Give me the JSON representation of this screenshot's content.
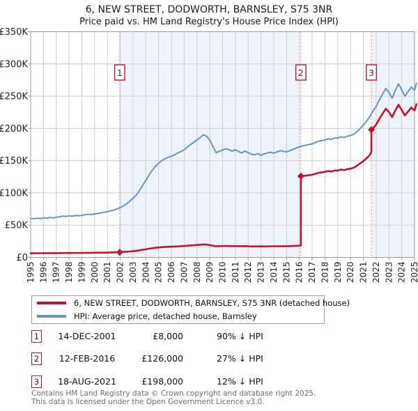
{
  "chart_data": {
    "type": "line",
    "title": "6, NEW STREET, DODWORTH, BARNSLEY, S75 3NR",
    "subtitle": "Price paid vs. HM Land Registry's House Price Index (HPI)",
    "grid": true,
    "legend_position": "bottom",
    "x_axis": {
      "min": 1995,
      "max": 2025,
      "tick_labels": [
        "1995",
        "1996",
        "1997",
        "1998",
        "1999",
        "2000",
        "2001",
        "2002",
        "2003",
        "2004",
        "2005",
        "2006",
        "2007",
        "2008",
        "2009",
        "2010",
        "2011",
        "2012",
        "2013",
        "2014",
        "2015",
        "2016",
        "2017",
        "2018",
        "2019",
        "2020",
        "2021",
        "2022",
        "2023",
        "2024",
        "2025"
      ]
    },
    "y_axis": {
      "min_k": 0,
      "max_k": 350,
      "y_unit": "GBP_thousands",
      "tick_values_k": [
        0,
        50,
        100,
        150,
        200,
        250,
        300,
        350
      ],
      "tick_labels": [
        "£0",
        "£50K",
        "£100K",
        "£150K",
        "£200K",
        "£250K",
        "£300K",
        "£350K"
      ]
    },
    "series": [
      {
        "name": "hpi",
        "color": "#6693c9",
        "width": 2,
        "points": [
          [
            1995.0,
            60.5
          ],
          [
            1995.25,
            59.8
          ],
          [
            1995.5,
            60.8
          ],
          [
            1995.75,
            60.2
          ],
          [
            1996.0,
            61.5
          ],
          [
            1996.25,
            60.6
          ],
          [
            1996.5,
            62.0
          ],
          [
            1996.75,
            61.4
          ],
          [
            1997.0,
            62.3
          ],
          [
            1997.25,
            63.0
          ],
          [
            1997.5,
            64.0
          ],
          [
            1997.75,
            63.4
          ],
          [
            1998.0,
            64.4
          ],
          [
            1998.25,
            63.8
          ],
          [
            1998.5,
            65.0
          ],
          [
            1998.75,
            64.6
          ],
          [
            1999.0,
            65.2
          ],
          [
            1999.25,
            66.2
          ],
          [
            1999.5,
            67.0
          ],
          [
            1999.75,
            66.4
          ],
          [
            2000.0,
            67.4
          ],
          [
            2000.25,
            68.2
          ],
          [
            2000.5,
            69.0
          ],
          [
            2000.75,
            70.0
          ],
          [
            2001.0,
            71.0
          ],
          [
            2001.25,
            72.2
          ],
          [
            2001.5,
            73.6
          ],
          [
            2001.75,
            75.2
          ],
          [
            2002.0,
            77.2
          ],
          [
            2002.25,
            79.8
          ],
          [
            2002.5,
            83.2
          ],
          [
            2002.75,
            87.2
          ],
          [
            2003.0,
            91.5
          ],
          [
            2003.25,
            96.5
          ],
          [
            2003.5,
            103.5
          ],
          [
            2003.75,
            111.5
          ],
          [
            2004.0,
            119.5
          ],
          [
            2004.25,
            127.5
          ],
          [
            2004.5,
            135.0
          ],
          [
            2004.75,
            141.0
          ],
          [
            2005.0,
            146.0
          ],
          [
            2005.25,
            150.0
          ],
          [
            2005.5,
            153.0
          ],
          [
            2005.75,
            155.0
          ],
          [
            2006.0,
            157.0
          ],
          [
            2006.25,
            159.0
          ],
          [
            2006.5,
            162.0
          ],
          [
            2006.75,
            164.0
          ],
          [
            2007.0,
            167.0
          ],
          [
            2007.25,
            171.0
          ],
          [
            2007.5,
            175.0
          ],
          [
            2007.75,
            178.5
          ],
          [
            2008.0,
            182.0
          ],
          [
            2008.25,
            186.0
          ],
          [
            2008.5,
            190.0
          ],
          [
            2008.75,
            188.0
          ],
          [
            2009.0,
            182.0
          ],
          [
            2009.25,
            172.0
          ],
          [
            2009.5,
            162.5
          ],
          [
            2009.75,
            164.5
          ],
          [
            2010.0,
            166.5
          ],
          [
            2010.25,
            168.5
          ],
          [
            2010.5,
            167.0
          ],
          [
            2010.75,
            165.0
          ],
          [
            2011.0,
            167.0
          ],
          [
            2011.25,
            164.0
          ],
          [
            2011.5,
            162.0
          ],
          [
            2011.75,
            165.0
          ],
          [
            2012.0,
            162.5
          ],
          [
            2012.25,
            160.0
          ],
          [
            2012.5,
            159.0
          ],
          [
            2012.75,
            161.0
          ],
          [
            2013.0,
            158.5
          ],
          [
            2013.25,
            160.5
          ],
          [
            2013.5,
            162.0
          ],
          [
            2013.75,
            163.0
          ],
          [
            2014.0,
            161.5
          ],
          [
            2014.25,
            163.5
          ],
          [
            2014.5,
            165.5
          ],
          [
            2014.75,
            164.5
          ],
          [
            2015.0,
            163.5
          ],
          [
            2015.25,
            165.5
          ],
          [
            2015.5,
            167.5
          ],
          [
            2015.75,
            169.5
          ],
          [
            2016.0,
            171.5
          ],
          [
            2016.25,
            173.0
          ],
          [
            2016.5,
            174.0
          ],
          [
            2016.75,
            175.0
          ],
          [
            2017.0,
            176.0
          ],
          [
            2017.25,
            178.0
          ],
          [
            2017.5,
            180.0
          ],
          [
            2017.75,
            181.0
          ],
          [
            2018.0,
            182.0
          ],
          [
            2018.25,
            184.0
          ],
          [
            2018.5,
            183.0
          ],
          [
            2018.75,
            185.0
          ],
          [
            2019.0,
            185.0
          ],
          [
            2019.25,
            187.0
          ],
          [
            2019.5,
            186.0
          ],
          [
            2019.75,
            188.0
          ],
          [
            2020.0,
            189.0
          ],
          [
            2020.25,
            191.0
          ],
          [
            2020.5,
            195.0
          ],
          [
            2020.75,
            200.0
          ],
          [
            2021.0,
            205.0
          ],
          [
            2021.25,
            211.0
          ],
          [
            2021.5,
            218.0
          ],
          [
            2021.75,
            227.0
          ],
          [
            2022.0,
            234.0
          ],
          [
            2022.25,
            244.0
          ],
          [
            2022.5,
            253.0
          ],
          [
            2022.75,
            262.0
          ],
          [
            2023.0,
            256.0
          ],
          [
            2023.25,
            247.0
          ],
          [
            2023.5,
            259.0
          ],
          [
            2023.75,
            269.0
          ],
          [
            2024.0,
            260.0
          ],
          [
            2024.25,
            250.0
          ],
          [
            2024.5,
            257.0
          ],
          [
            2024.75,
            264.0
          ],
          [
            2025.0,
            259.0
          ],
          [
            2025.15,
            270.0
          ]
        ]
      },
      {
        "name": "price_paid",
        "color": "#c8102e",
        "width": 2.6,
        "points": [
          [
            1995.0,
            6.4
          ],
          [
            1995.5,
            6.5
          ],
          [
            1996.0,
            6.5
          ],
          [
            1996.5,
            6.6
          ],
          [
            1997.0,
            6.6
          ],
          [
            1997.5,
            6.8
          ],
          [
            1998.0,
            6.8
          ],
          [
            1998.5,
            6.9
          ],
          [
            1999.0,
            6.9
          ],
          [
            1999.5,
            7.1
          ],
          [
            2000.0,
            7.2
          ],
          [
            2000.5,
            7.3
          ],
          [
            2001.0,
            7.5
          ],
          [
            2001.5,
            7.8
          ],
          [
            2001.96,
            8.0
          ],
          [
            2002.25,
            8.5
          ],
          [
            2002.75,
            9.2
          ],
          [
            2003.25,
            10.2
          ],
          [
            2003.75,
            11.8
          ],
          [
            2004.25,
            13.5
          ],
          [
            2004.75,
            14.9
          ],
          [
            2005.25,
            15.9
          ],
          [
            2005.75,
            16.4
          ],
          [
            2006.25,
            16.8
          ],
          [
            2006.75,
            17.4
          ],
          [
            2007.25,
            18.1
          ],
          [
            2007.75,
            18.9
          ],
          [
            2008.25,
            19.7
          ],
          [
            2008.5,
            20.1
          ],
          [
            2008.75,
            19.9
          ],
          [
            2009.25,
            18.2
          ],
          [
            2009.5,
            17.2
          ],
          [
            2009.75,
            17.4
          ],
          [
            2010.25,
            17.8
          ],
          [
            2010.75,
            17.5
          ],
          [
            2011.25,
            17.4
          ],
          [
            2011.75,
            17.5
          ],
          [
            2012.25,
            17.0
          ],
          [
            2012.75,
            17.1
          ],
          [
            2013.25,
            17.0
          ],
          [
            2013.75,
            17.3
          ],
          [
            2014.25,
            17.3
          ],
          [
            2014.75,
            17.4
          ],
          [
            2015.25,
            17.5
          ],
          [
            2015.75,
            17.9
          ],
          [
            2016.12,
            18.3
          ],
          [
            2016.12,
            126.0
          ],
          [
            2016.5,
            126.7
          ],
          [
            2016.75,
            127.4
          ],
          [
            2017.0,
            128.1
          ],
          [
            2017.25,
            129.6
          ],
          [
            2017.5,
            131.0
          ],
          [
            2017.75,
            131.8
          ],
          [
            2018.0,
            132.5
          ],
          [
            2018.25,
            134.0
          ],
          [
            2018.5,
            133.2
          ],
          [
            2018.75,
            134.7
          ],
          [
            2019.0,
            134.7
          ],
          [
            2019.25,
            136.1
          ],
          [
            2019.5,
            135.4
          ],
          [
            2019.75,
            136.9
          ],
          [
            2020.0,
            137.6
          ],
          [
            2020.25,
            139.0
          ],
          [
            2020.5,
            142.0
          ],
          [
            2020.75,
            145.6
          ],
          [
            2021.0,
            149.2
          ],
          [
            2021.25,
            153.6
          ],
          [
            2021.5,
            158.7
          ],
          [
            2021.63,
            163.5
          ],
          [
            2021.63,
            198.0
          ],
          [
            2021.75,
            199.8
          ],
          [
            2022.0,
            205.9
          ],
          [
            2022.25,
            214.7
          ],
          [
            2022.5,
            222.6
          ],
          [
            2022.75,
            230.6
          ],
          [
            2023.0,
            225.3
          ],
          [
            2023.25,
            217.4
          ],
          [
            2023.5,
            227.9
          ],
          [
            2023.75,
            236.7
          ],
          [
            2024.0,
            228.8
          ],
          [
            2024.25,
            220.0
          ],
          [
            2024.5,
            226.2
          ],
          [
            2024.75,
            232.3
          ],
          [
            2025.0,
            227.9
          ],
          [
            2025.15,
            237.6
          ]
        ]
      }
    ],
    "sale_events": [
      {
        "label": "1",
        "x": 2001.96,
        "y_k": 8
      },
      {
        "label": "2",
        "x": 2016.12,
        "y_k": 126
      },
      {
        "label": "3",
        "x": 2021.63,
        "y_k": 198
      }
    ],
    "shaded_bands": [
      [
        2001.96,
        2016.12
      ],
      [
        2021.63,
        2025.3
      ]
    ],
    "colors": {
      "band": "#edf2fb",
      "grid": "#cfcfcf",
      "frame": "#9a9a9a",
      "event_line": "#f08e8e",
      "event_box_border": "#c8102e",
      "event_box_fill": "#ffffff",
      "event_box_text": "#333333",
      "axis_text": "#222222"
    }
  },
  "legend": {
    "items": [
      {
        "label": "6, NEW STREET, DODWORTH, BARNSLEY, S75 3NR (detached house)",
        "color": "#c8102e"
      },
      {
        "label": "HPI: Average price, detached house, Barnsley",
        "color": "#6693c9"
      }
    ]
  },
  "sales_table": {
    "rows": [
      {
        "num": "1",
        "date": "14-DEC-2001",
        "price": "£8,000",
        "hpi_diff": "90% ↓ HPI"
      },
      {
        "num": "2",
        "date": "12-FEB-2016",
        "price": "£126,000",
        "hpi_diff": "27% ↓ HPI"
      },
      {
        "num": "3",
        "date": "18-AUG-2021",
        "price": "£198,000",
        "hpi_diff": "12% ↓ HPI"
      }
    ]
  },
  "footer": {
    "line1": "Contains HM Land Registry data © Crown copyright and database right 2025.",
    "line2": "This data is licensed under the Open Government Licence v3.0."
  }
}
